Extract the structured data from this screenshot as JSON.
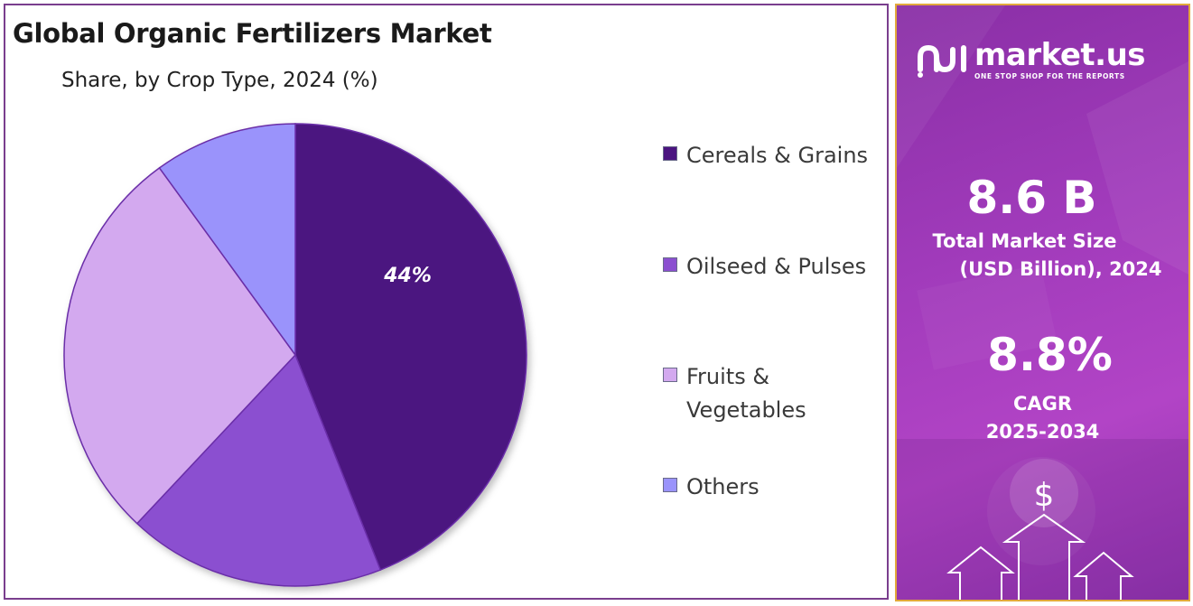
{
  "chart_data": {
    "type": "pie",
    "title": "Global Organic Fertilizers Market",
    "subtitle": "Share, by Crop Type, 2024 (%)",
    "slices": [
      {
        "label": "Cereals & Grains",
        "value": 44,
        "color": "#4b1480",
        "data_label": "44%"
      },
      {
        "label": "Oilseed & Pulses",
        "value": 18,
        "color": "#8b4fd0",
        "data_label": ""
      },
      {
        "label": "Fruits & Vegetables",
        "value": 28,
        "color": "#d3a9ef",
        "data_label": ""
      },
      {
        "label": "Others",
        "value": 10,
        "color": "#9a93fb",
        "data_label": ""
      }
    ],
    "start_angle_deg": 0,
    "direction": "clockwise",
    "legend_position": "right"
  },
  "info": {
    "brand": "market.us",
    "tagline": "ONE STOP SHOP FOR THE REPORTS",
    "market_size_value": "8.6 B",
    "market_size_label_line1": "Total Market Size",
    "market_size_label_line2": "(USD Billion), 2024",
    "cagr_value": "8.8%",
    "cagr_label_line1": "CAGR",
    "cagr_label_line2": "2025-2034",
    "icons": [
      "dollar-icon",
      "up-arrow-icon"
    ]
  }
}
